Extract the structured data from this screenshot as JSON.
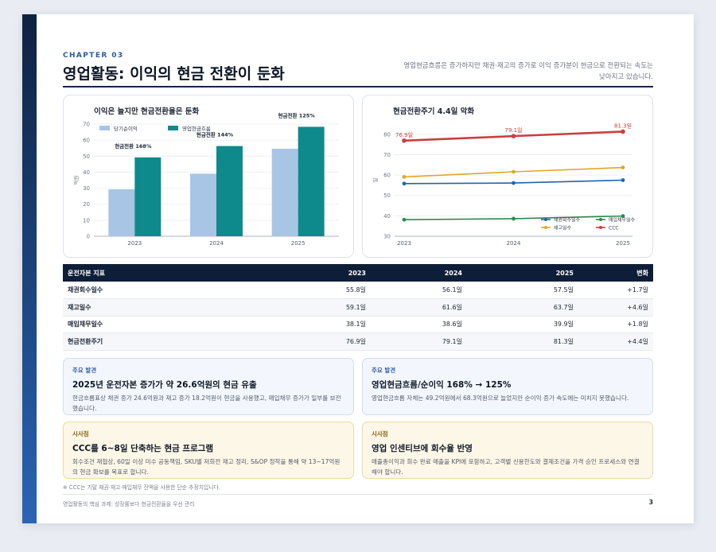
{
  "header": {
    "chapter": "CHAPTER 03",
    "title": "영업활동: 이익의 현금 전환이 둔화",
    "subtitle": "영업현금흐름은 증가하지만 채권·재고의 증가로 이익 증가분이 현금으로 전환되는 속도는 낮아지고 있습니다."
  },
  "chart_data": [
    {
      "type": "bar",
      "title": "이익은 늘지만 현금전환율은 둔화",
      "categories": [
        "2023",
        "2024",
        "2025"
      ],
      "series": [
        {
          "name": "당기순이익",
          "values": [
            29.3,
            39.0,
            54.6
          ],
          "color": "#a9c5e6"
        },
        {
          "name": "영업현금흐름",
          "values": [
            49.2,
            56.3,
            68.3
          ],
          "color": "#0f8a8c"
        }
      ],
      "annotations": [
        "현금전환 168%",
        "현금전환 144%",
        "현금전환 125%"
      ],
      "ylabel": "억원",
      "ylim": [
        0,
        70
      ],
      "yticks": [
        0,
        10,
        20,
        30,
        40,
        50,
        60,
        70
      ],
      "grid": true,
      "legend": "top-left"
    },
    {
      "type": "line",
      "title": "현금전환주기 4.4일 악화",
      "x": [
        "2023",
        "2024",
        "2025"
      ],
      "series": [
        {
          "name": "채권회수일수",
          "values": [
            55.8,
            56.1,
            57.5
          ],
          "color": "#2464a8"
        },
        {
          "name": "매입채무일수",
          "values": [
            38.1,
            38.6,
            39.9
          ],
          "color": "#2e8a4f"
        },
        {
          "name": "재고일수",
          "values": [
            59.1,
            61.6,
            63.7
          ],
          "color": "#e2a62a"
        },
        {
          "name": "CCC",
          "values": [
            76.9,
            79.1,
            81.3
          ],
          "color": "#c9403e"
        }
      ],
      "point_labels": [
        "76.9일",
        "79.1일",
        "81.3일"
      ],
      "ylabel": "일",
      "ylim": [
        30,
        85
      ],
      "yticks": [
        30,
        40,
        50,
        60,
        70,
        80
      ],
      "grid": true,
      "legend": "bottom-right"
    }
  ],
  "table": {
    "headers": [
      "운전자본 지표",
      "2023",
      "2024",
      "2025",
      "변화"
    ],
    "rows": [
      [
        "채권회수일수",
        "55.8일",
        "56.1일",
        "57.5일",
        "+1.7일"
      ],
      [
        "재고일수",
        "59.1일",
        "61.6일",
        "63.7일",
        "+4.6일"
      ],
      [
        "매입채무일수",
        "38.1일",
        "38.6일",
        "39.9일",
        "+1.8일"
      ],
      [
        "현금전환주기",
        "76.9일",
        "79.1일",
        "81.3일",
        "+4.4일"
      ]
    ]
  },
  "findings": [
    {
      "tag": "주요 발견",
      "head": "2025년 운전자본 증가가 약 26.6억원의 현금 유출",
      "body": "현금흐름표상 채권 증가 24.6억원과 재고 증가 18.2억원이 현금을 사용했고, 매입채무 증가가 일부를 보전했습니다."
    },
    {
      "tag": "주요 발견",
      "head": "영업현금흐름/순이익 168% → 125%",
      "body": "영업현금흐름 자체는 49.2억원에서 68.3억원으로 늘었지만 순이익 증가 속도에는 미치지 못했습니다."
    },
    {
      "tag": "시사점",
      "head": "CCC를 6~8일 단축하는 현금 프로그램",
      "body": "회수조건 재협상, 60일 이상 미수 공동책임, SKU별 저회전 재고 정리, S&OP 정착을 통해 약 13~17억원의 현금 확보를 목표로 합니다."
    },
    {
      "tag": "시사점",
      "head": "영업 인센티브에 회수율 반영",
      "body": "매출총이익과 회수 완료 매출을 KPI에 포함하고, 고객별 신용한도와 결제조건을 가격 승인 프로세스와 연결해야 합니다."
    }
  ],
  "footnote": "※ CCC는 기말 채권·재고·매입채무 잔액을 사용한 단순 추정치입니다.",
  "footer": {
    "left": "영업활동의 핵심 과제: 성장률보다 현금전환율을 우선 관리",
    "page": "3"
  }
}
